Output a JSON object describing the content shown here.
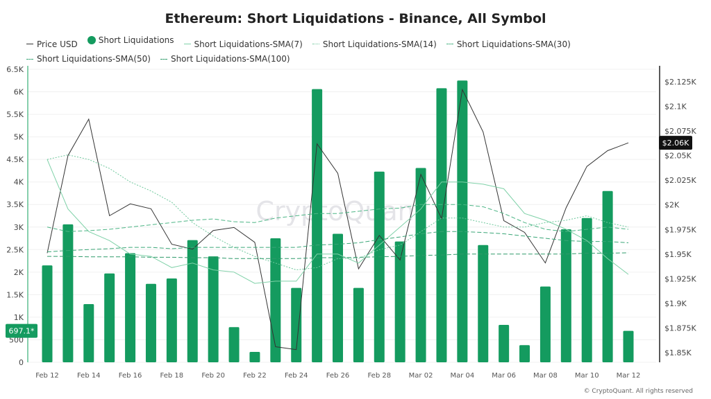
{
  "chart_data": {
    "type": "bar",
    "title": "Ethereum: Short Liquidations - Binance, All Symbol",
    "categories": [
      "Feb 12",
      "Feb 13",
      "Feb 14",
      "Feb 15",
      "Feb 16",
      "Feb 17",
      "Feb 18",
      "Feb 19",
      "Feb 20",
      "Feb 21",
      "Feb 22",
      "Feb 23",
      "Feb 24",
      "Feb 25",
      "Feb 26",
      "Feb 27",
      "Feb 28",
      "Mar 01",
      "Mar 02",
      "Mar 03",
      "Mar 04",
      "Mar 05",
      "Mar 06",
      "Mar 07",
      "Mar 08",
      "Mar 09",
      "Mar 10",
      "Mar 11",
      "Mar 12"
    ],
    "x_tick_labels": [
      "Feb 12",
      "Feb 14",
      "Feb 16",
      "Feb 18",
      "Feb 20",
      "Feb 22",
      "Feb 24",
      "Feb 26",
      "Feb 28",
      "Mar 02",
      "Mar 04",
      "Mar 06",
      "Mar 08",
      "Mar 10",
      "Mar 12"
    ],
    "y_left": {
      "ylim": [
        0,
        6500
      ],
      "ticks": [
        "0",
        "500",
        "1K",
        "1.5K",
        "2K",
        "2.5K",
        "3K",
        "3.5K",
        "4K",
        "4.5K",
        "5K",
        "5.5K",
        "6K",
        "6.5K"
      ]
    },
    "y_right": {
      "ylim": [
        1850,
        2140
      ],
      "ticks": [
        "$1.85K",
        "$1.875K",
        "$1.9K",
        "$1.925K",
        "$1.95K",
        "$1.975K",
        "$2K",
        "$2.025K",
        "$2.05K",
        "$2.075K",
        "$2.1K",
        "$2.125K"
      ]
    },
    "grid": true,
    "legend_position": "top-left",
    "series": [
      {
        "name": "Price USD",
        "type": "line",
        "axis": "right",
        "color": "#333333",
        "values": [
          1951,
          2050,
          2087,
          1989,
          2001,
          1996,
          1960,
          1955,
          1974,
          1977,
          1962,
          1856,
          1853,
          2062,
          2032,
          1935,
          1969,
          1944,
          2031,
          1986,
          2117,
          2074,
          1984,
          1972,
          1941,
          1997,
          2039,
          2055,
          2063
        ]
      },
      {
        "name": "Short Liquidations",
        "type": "bar",
        "axis": "left",
        "color": "#149b5f",
        "values": [
          2150,
          3060,
          1290,
          1970,
          2420,
          1740,
          1860,
          2710,
          2350,
          780,
          230,
          2750,
          1650,
          6060,
          2850,
          1650,
          4230,
          2680,
          4310,
          6080,
          6250,
          2600,
          830,
          380,
          1680,
          2950,
          3200,
          3800,
          697.1
        ]
      },
      {
        "name": "Short Liquidations-SMA(7)",
        "type": "line",
        "dash": "solid",
        "axis": "left",
        "color": "#7fd1a8",
        "values": [
          4500,
          3400,
          2900,
          2700,
          2400,
          2350,
          2100,
          2200,
          2050,
          2000,
          1750,
          1800,
          1800,
          2400,
          2400,
          2200,
          2600,
          3000,
          3400,
          4000,
          4000,
          3950,
          3850,
          3300,
          3150,
          2950,
          2700,
          2300,
          1950
        ]
      },
      {
        "name": "Short Liquidations-SMA(14)",
        "type": "line",
        "dash": "dotted",
        "axis": "left",
        "color": "#6cc79b",
        "values": [
          4500,
          4600,
          4500,
          4300,
          4000,
          3800,
          3550,
          3100,
          2800,
          2550,
          2350,
          2200,
          2050,
          2100,
          2300,
          2300,
          2500,
          2600,
          2900,
          3200,
          3200,
          3100,
          3000,
          3000,
          3100,
          3150,
          3250,
          3100,
          3000
        ]
      },
      {
        "name": "Short Liquidations-SMA(30)",
        "type": "line",
        "dash": "dashed",
        "axis": "left",
        "color": "#4cb585",
        "values": [
          3000,
          2900,
          2920,
          2950,
          3000,
          3050,
          3100,
          3150,
          3180,
          3120,
          3100,
          3200,
          3250,
          3300,
          3300,
          3350,
          3400,
          3420,
          3500,
          3500,
          3500,
          3450,
          3300,
          3100,
          2950,
          2900,
          2950,
          3000,
          2950
        ]
      },
      {
        "name": "Short Liquidations-SMA(50)",
        "type": "line",
        "dash": "dashed",
        "axis": "left",
        "color": "#3aa677",
        "values": [
          2450,
          2480,
          2500,
          2520,
          2550,
          2550,
          2520,
          2550,
          2550,
          2550,
          2550,
          2550,
          2550,
          2600,
          2620,
          2650,
          2720,
          2780,
          2850,
          2900,
          2900,
          2880,
          2850,
          2800,
          2750,
          2700,
          2680,
          2680,
          2650
        ]
      },
      {
        "name": "Short Liquidations-SMA(100)",
        "type": "line",
        "dash": "dashed",
        "axis": "left",
        "color": "#2e9a6a",
        "values": [
          2350,
          2350,
          2340,
          2340,
          2340,
          2330,
          2330,
          2320,
          2320,
          2300,
          2300,
          2300,
          2300,
          2320,
          2320,
          2330,
          2340,
          2350,
          2370,
          2380,
          2400,
          2400,
          2400,
          2400,
          2400,
          2400,
          2420,
          2420,
          2430
        ]
      }
    ],
    "highlight_labels": {
      "left": "697.1*",
      "right": "$2.06K"
    }
  },
  "watermark": "CryptoQuant",
  "footer": "© CryptoQuant. All rights reserved"
}
